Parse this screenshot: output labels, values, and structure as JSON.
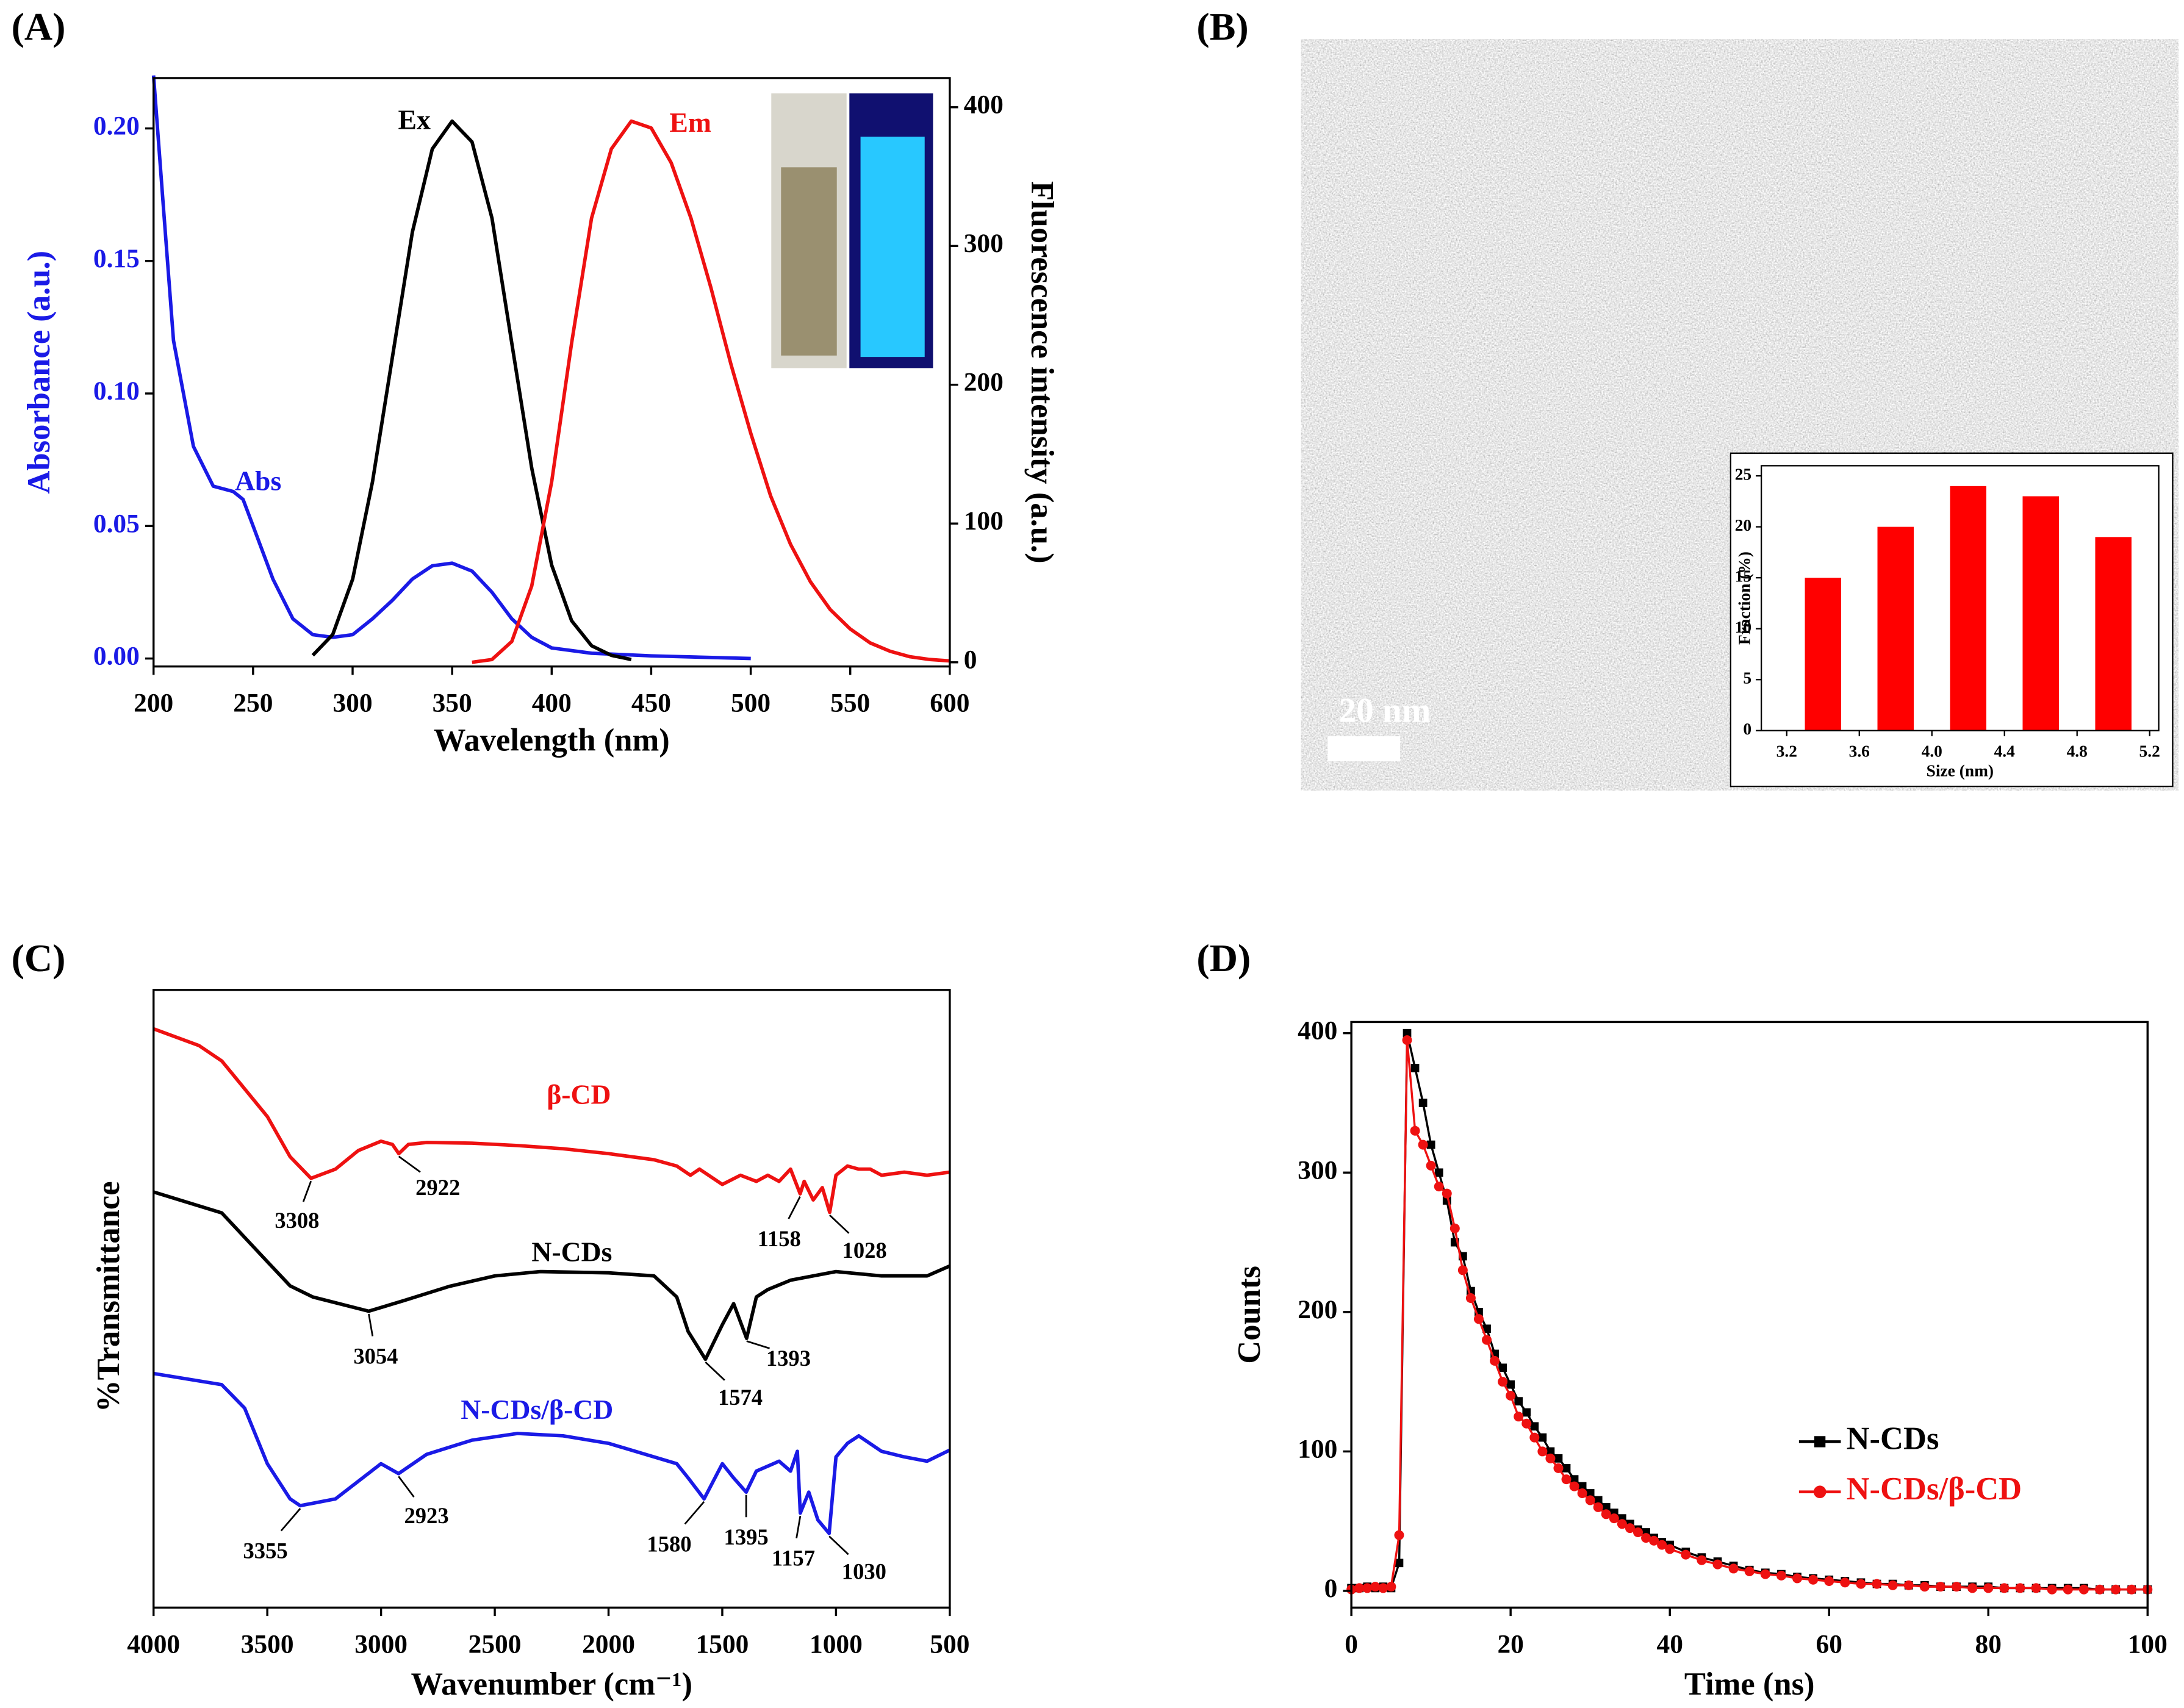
{
  "chart_data": [
    {
      "type": "line",
      "title": "(A)",
      "xlabel": "Wavelength (nm)",
      "ylabel": "Absorbance (a.u.)",
      "y2label": "Fluorescence intensity (a.u.)",
      "xlim": [
        200,
        600
      ],
      "xticks": [
        200,
        250,
        300,
        350,
        400,
        450,
        500,
        550,
        600
      ],
      "ylim": [
        -0.003,
        0.219
      ],
      "yticks": [
        {
          "value": 0,
          "label": "0.00"
        },
        {
          "value": 0.05,
          "label": "0.05"
        },
        {
          "value": 0.1,
          "label": "0.10"
        },
        {
          "value": 0.15,
          "label": "0.15"
        },
        {
          "value": 0.2,
          "label": "0.20"
        }
      ],
      "y2lim": [
        -3,
        421
      ],
      "y2ticks": [
        0,
        100,
        200,
        300,
        400
      ],
      "series": [
        {
          "name": "Abs",
          "color": "#1a1ae6",
          "x": [
            200,
            205,
            210,
            220,
            230,
            240,
            245,
            250,
            260,
            270,
            280,
            290,
            300,
            310,
            320,
            330,
            340,
            350,
            360,
            370,
            380,
            390,
            400,
            420,
            450,
            500
          ],
          "values": [
            0.22,
            0.17,
            0.12,
            0.08,
            0.065,
            0.063,
            0.06,
            0.05,
            0.03,
            0.015,
            0.009,
            0.008,
            0.009,
            0.015,
            0.022,
            0.03,
            0.035,
            0.036,
            0.033,
            0.025,
            0.015,
            0.008,
            0.004,
            0.002,
            0.001,
            0
          ]
        },
        {
          "name": "Ex",
          "color": "#000000",
          "axis": "y2",
          "x": [
            280,
            290,
            300,
            310,
            320,
            330,
            340,
            350,
            360,
            370,
            380,
            390,
            400,
            410,
            420,
            430,
            440
          ],
          "values": [
            5,
            20,
            60,
            130,
            220,
            310,
            370,
            390,
            375,
            320,
            230,
            140,
            70,
            30,
            12,
            5,
            2
          ]
        },
        {
          "name": "Em",
          "color": "#ee1111",
          "axis": "y2",
          "x": [
            360,
            370,
            380,
            390,
            400,
            410,
            420,
            430,
            440,
            450,
            460,
            470,
            480,
            490,
            500,
            510,
            520,
            530,
            540,
            550,
            560,
            570,
            580,
            590,
            600
          ],
          "values": [
            0,
            2,
            15,
            55,
            130,
            230,
            320,
            370,
            390,
            385,
            360,
            320,
            270,
            215,
            165,
            120,
            85,
            58,
            38,
            24,
            14,
            8,
            4,
            2,
            1
          ]
        }
      ]
    },
    {
      "type": "image",
      "title": "(B)",
      "scale_bar": "20 nm",
      "inset": {
        "type": "bar",
        "xlabel": "Size (nm)",
        "ylabel": "Fraction (%)",
        "color": "#ff0000",
        "x": [
          3.4,
          3.8,
          4.2,
          4.6,
          5.0
        ],
        "values": [
          15,
          20,
          24,
          23,
          19
        ],
        "xlim": [
          3.06,
          5.25
        ],
        "xticks": [
          3.2,
          3.6,
          {
            "value": 4,
            "label": "4.0"
          },
          4.4,
          4.8,
          5.2
        ],
        "ylim": [
          0,
          26
        ],
        "yticks": [
          0,
          5,
          10,
          15,
          20,
          25
        ]
      }
    },
    {
      "type": "line",
      "title": "(C)",
      "xlabel": "Wavenumber (cm⁻¹)",
      "ylabel": "%Transmittance",
      "xlim": [
        4000,
        500
      ],
      "xticks": [
        4000,
        3500,
        3000,
        2500,
        2000,
        1500,
        1000,
        500
      ],
      "ylim": [
        0,
        100
      ],
      "series": [
        {
          "name": "β-CD",
          "color": "#ee1111",
          "x": [
            4000,
            3800,
            3700,
            3600,
            3500,
            3400,
            3308,
            3200,
            3100,
            3000,
            2950,
            2922,
            2880,
            2800,
            2600,
            2400,
            2200,
            2000,
            1800,
            1700,
            1640,
            1600,
            1500,
            1420,
            1350,
            1300,
            1250,
            1200,
            1158,
            1140,
            1100,
            1060,
            1028,
            1000,
            950,
            900,
            850,
            800,
            700,
            600,
            500
          ],
          "values": [
            93.7,
            91,
            88.5,
            84,
            79.5,
            73,
            69.5,
            71,
            74,
            75.5,
            75,
            73.5,
            75,
            75.3,
            75.2,
            74.8,
            74.3,
            73.5,
            72.5,
            71.5,
            70,
            71,
            68.5,
            70,
            69,
            70,
            69,
            71,
            67,
            69,
            66,
            68,
            64,
            70,
            71.5,
            71,
            71,
            70,
            70.5,
            70,
            70.5
          ],
          "peaks": [
            3308,
            2922,
            1158,
            1028
          ]
        },
        {
          "name": "N-CDs",
          "color": "#000000",
          "x": [
            4000,
            3700,
            3500,
            3400,
            3300,
            3054,
            2900,
            2700,
            2500,
            2300,
            2000,
            1800,
            1700,
            1650,
            1574,
            1500,
            1450,
            1393,
            1350,
            1300,
            1200,
            1000,
            800,
            600,
            500
          ],
          "values": [
            67.3,
            63.9,
            56,
            52.1,
            50.3,
            48,
            49.7,
            52,
            53.7,
            54.4,
            54.2,
            53.7,
            50.3,
            44.7,
            40.2,
            45.8,
            49.2,
            43.6,
            50.3,
            51.5,
            53,
            54.4,
            53.7,
            53.7,
            55.3
          ],
          "peaks": [
            3054,
            1574,
            1393
          ]
        },
        {
          "name": "N-CDs/β-CD",
          "color": "#1a1ae6",
          "x": [
            4000,
            3700,
            3600,
            3500,
            3400,
            3355,
            3200,
            3000,
            2923,
            2800,
            2600,
            2400,
            2200,
            2000,
            1800,
            1700,
            1650,
            1580,
            1500,
            1450,
            1395,
            1350,
            1250,
            1200,
            1170,
            1157,
            1120,
            1080,
            1030,
            1000,
            950,
            900,
            800,
            700,
            600,
            500
          ],
          "values": [
            37.9,
            36.1,
            32.3,
            23.3,
            17.6,
            16.5,
            17.6,
            23.3,
            21.7,
            24.8,
            27.1,
            28.2,
            27.8,
            26.6,
            24.4,
            23.3,
            21,
            17.6,
            23.3,
            21,
            18.7,
            22.1,
            23.7,
            22.1,
            25.3,
            15.3,
            18.7,
            14.2,
            12,
            24.4,
            26.6,
            27.8,
            25.3,
            24.4,
            23.7,
            25.5
          ],
          "peaks": [
            3355,
            2923,
            1580,
            1395,
            1157,
            1030
          ]
        }
      ]
    },
    {
      "type": "line",
      "title": "(D)",
      "xlabel": "Time (ns)",
      "ylabel": "Counts",
      "legend": "lower right",
      "xlim": [
        0,
        100
      ],
      "xticks": [
        0,
        20,
        40,
        60,
        80,
        100
      ],
      "ylim": [
        -12,
        408
      ],
      "yticks": [
        0,
        100,
        200,
        300,
        400
      ],
      "x": [
        0,
        1,
        2,
        3,
        4,
        5,
        6,
        7,
        8,
        9,
        10,
        11,
        12,
        13,
        14,
        15,
        16,
        17,
        18,
        19,
        20,
        21,
        22,
        23,
        24,
        25,
        26,
        27,
        28,
        29,
        30,
        31,
        32,
        33,
        34,
        35,
        36,
        37,
        38,
        39,
        40,
        42,
        44,
        46,
        48,
        50,
        52,
        54,
        56,
        58,
        60,
        62,
        64,
        66,
        68,
        70,
        72,
        74,
        76,
        78,
        80,
        82,
        84,
        86,
        88,
        90,
        92,
        94,
        96,
        98,
        100
      ],
      "series": [
        {
          "name": "N-CDs",
          "color": "#000000",
          "marker": "square",
          "values": [
            2,
            2,
            3,
            2,
            3,
            2,
            20,
            400,
            375,
            350,
            320,
            300,
            280,
            250,
            240,
            215,
            200,
            188,
            170,
            160,
            148,
            136,
            128,
            118,
            110,
            100,
            95,
            88,
            80,
            75,
            70,
            65,
            60,
            56,
            52,
            48,
            44,
            42,
            38,
            35,
            33,
            28,
            24,
            21,
            18,
            15,
            13,
            12,
            10,
            9,
            8,
            7,
            6,
            5,
            5,
            4,
            4,
            3,
            3,
            3,
            3,
            2,
            2,
            2,
            2,
            2,
            2,
            1,
            1,
            1,
            1
          ]
        },
        {
          "name": "N-CDs/β-CD",
          "color": "#ee1111",
          "marker": "circle",
          "values": [
            1,
            2,
            2,
            3,
            2,
            3,
            40,
            395,
            330,
            320,
            305,
            290,
            285,
            260,
            230,
            210,
            195,
            180,
            165,
            150,
            140,
            125,
            120,
            110,
            100,
            95,
            88,
            80,
            75,
            70,
            65,
            60,
            55,
            52,
            48,
            45,
            42,
            38,
            36,
            33,
            30,
            26,
            22,
            19,
            16,
            14,
            12,
            11,
            9,
            8,
            7,
            6,
            5,
            5,
            4,
            4,
            3,
            3,
            3,
            2,
            2,
            2,
            2,
            2,
            1,
            1,
            1,
            1,
            1,
            1,
            1
          ]
        }
      ]
    }
  ]
}
